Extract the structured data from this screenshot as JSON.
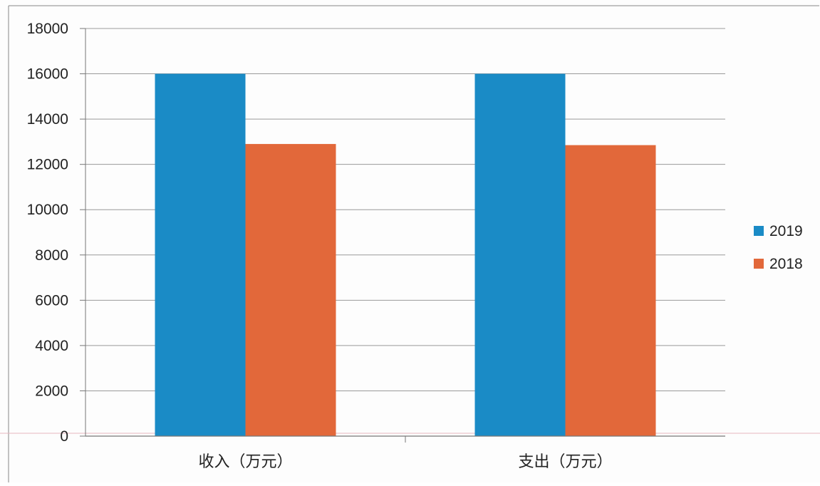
{
  "chart_data": {
    "type": "bar",
    "title": "",
    "xlabel": "",
    "ylabel": "",
    "categories": [
      "收入（万元）",
      "支出（万元）"
    ],
    "series": [
      {
        "name": "2019",
        "values": [
          16000,
          16000
        ],
        "color": "#1a8bc6"
      },
      {
        "name": "2018",
        "values": [
          12900,
          12850
        ],
        "color": "#e2683a"
      }
    ],
    "ylim": [
      0,
      18000
    ],
    "yticks": [
      "0",
      "2000",
      "4000",
      "6000",
      "8000",
      "10000",
      "12000",
      "14000",
      "16000",
      "18000"
    ],
    "grid": true,
    "legend_position": "right"
  }
}
